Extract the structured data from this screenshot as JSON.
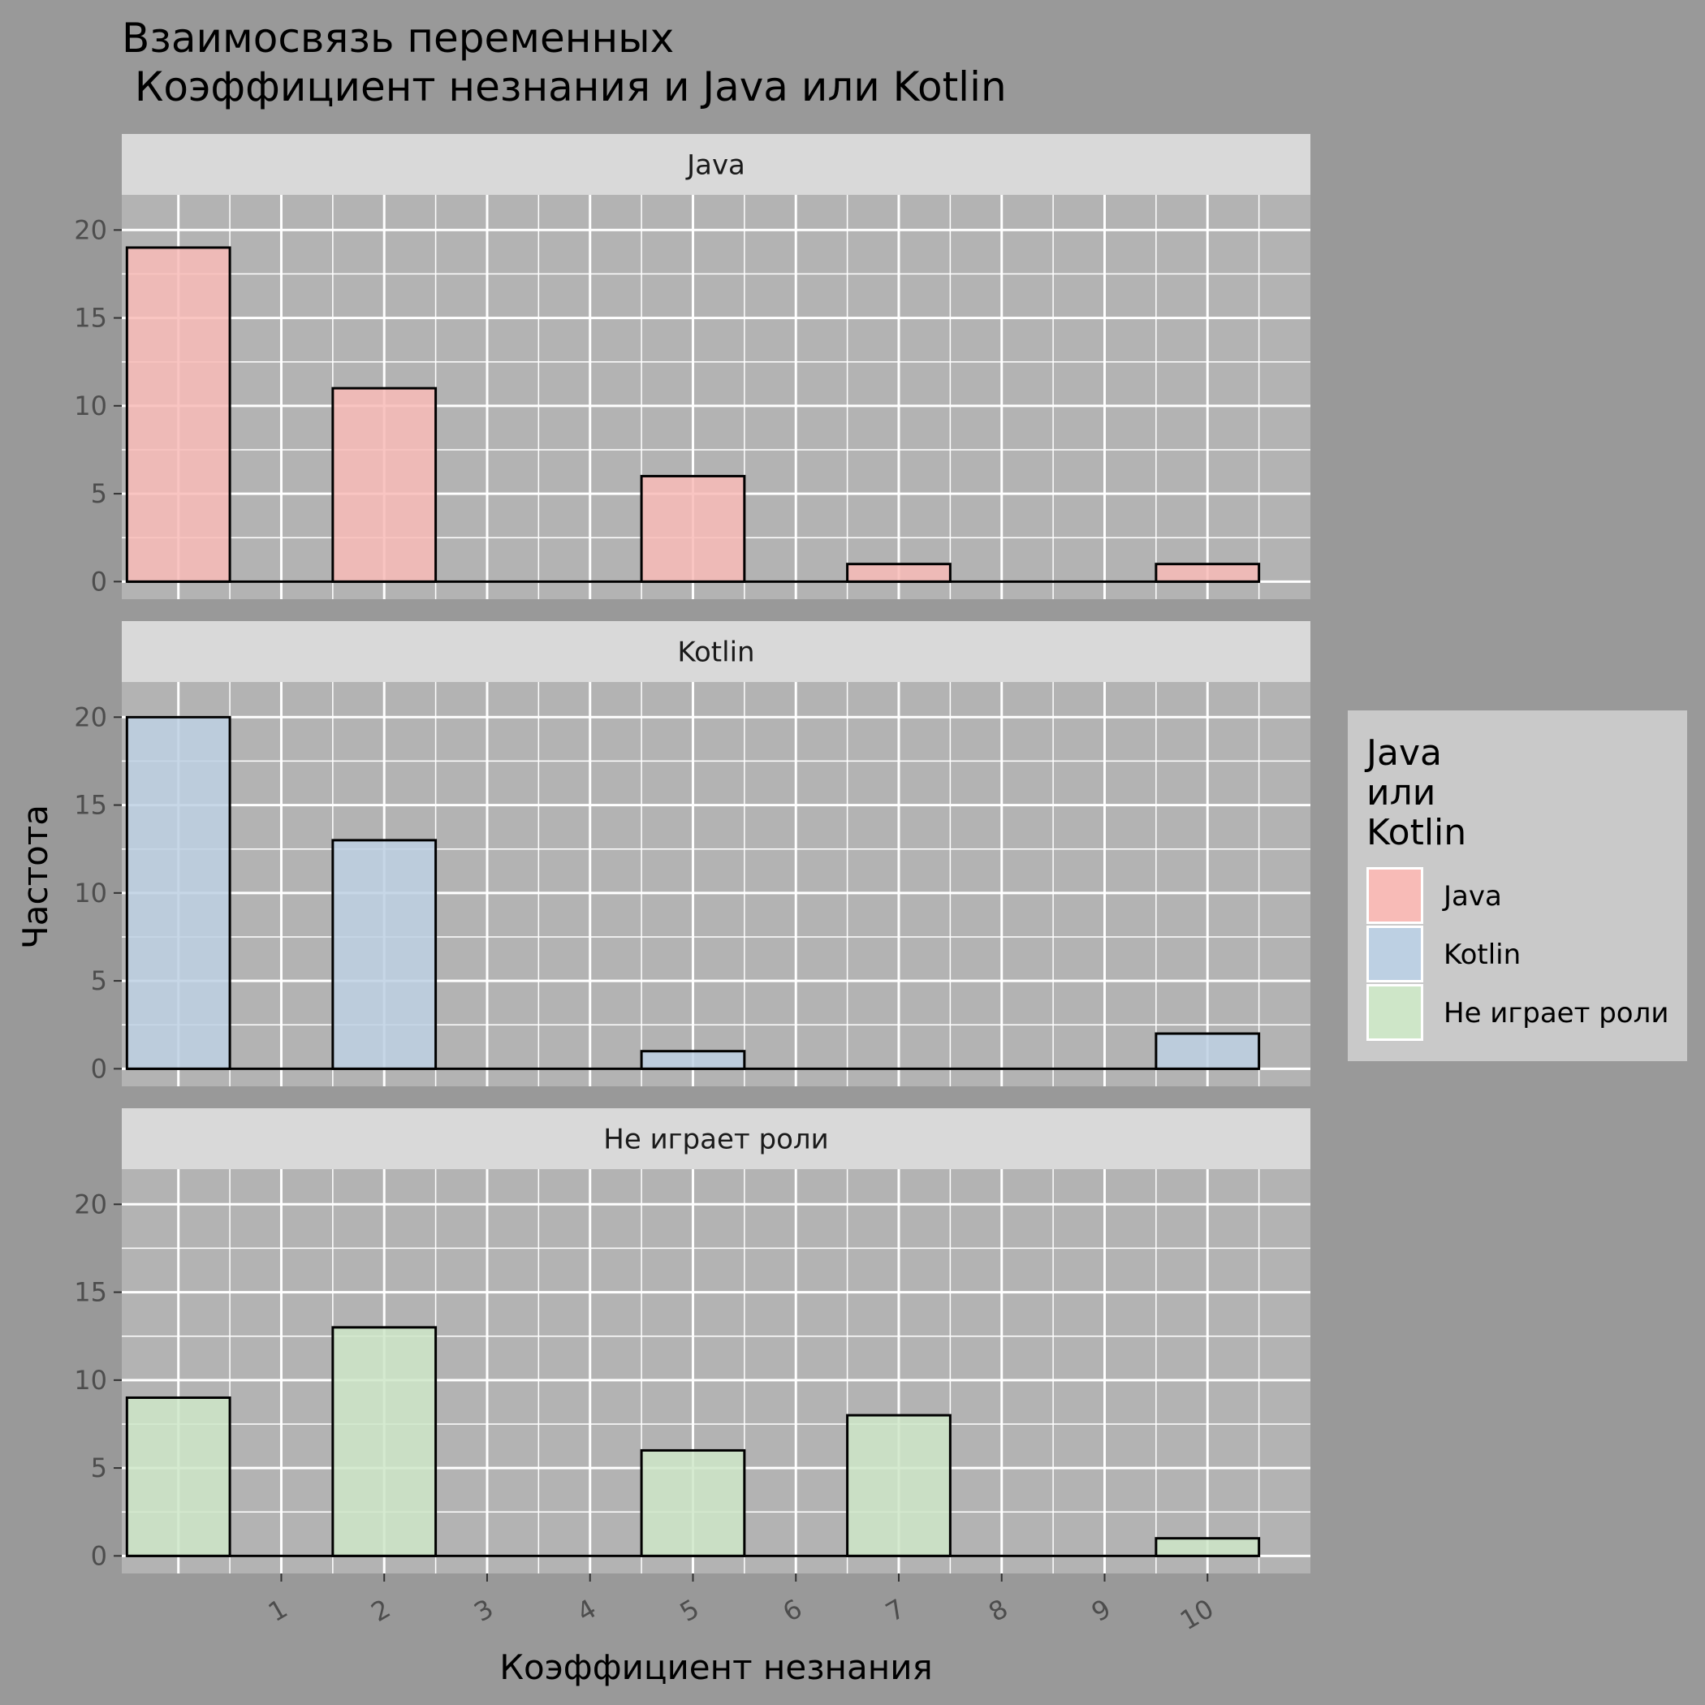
{
  "chart_data": {
    "type": "bar",
    "title_lines": [
      "Взаимосвязь переменных",
      " Коэффициент незнания и Java или Kotlin"
    ],
    "xlabel": "Коэффициент незнания",
    "ylabel": "Частота",
    "x": [
      0,
      2,
      5,
      7,
      10
    ],
    "x_ticks": [
      1,
      2,
      3,
      4,
      5,
      6,
      7,
      8,
      9,
      10
    ],
    "y_ticks": [
      0,
      5,
      10,
      15,
      20
    ],
    "xlim": [
      -0.55,
      11.0
    ],
    "ylim": [
      -1,
      22
    ],
    "grid": true,
    "legend": {
      "title_lines": [
        "Java",
        "или",
        "Kotlin"
      ],
      "position": "right",
      "entries": [
        "Java",
        "Kotlin",
        "Не играет роли"
      ]
    },
    "facets": [
      {
        "label": "Java",
        "color": "#F8BBB7",
        "values": [
          19,
          11,
          6,
          1,
          1
        ]
      },
      {
        "label": "Kotlin",
        "color": "#BDD0E3",
        "values": [
          20,
          13,
          1,
          0,
          2
        ]
      },
      {
        "label": "Не играет роли",
        "color": "#CEE6C8",
        "values": [
          9,
          13,
          6,
          8,
          1
        ]
      }
    ],
    "bar_width": 1.0
  }
}
